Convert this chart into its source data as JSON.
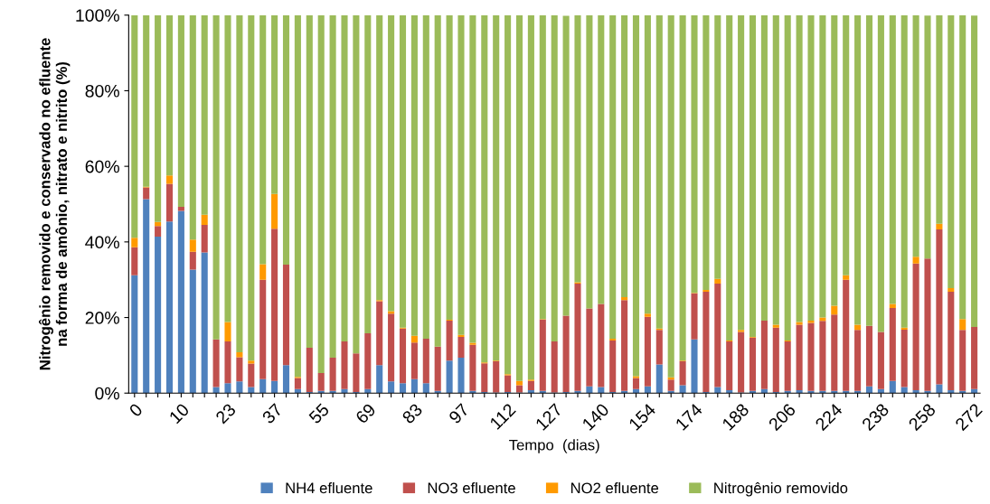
{
  "chart_data": {
    "type": "bar",
    "stacked": true,
    "xlabel": "Tempo  (dias)",
    "ylabel": "Nitrogênio removido e conservado no efluente\nna forma de amônio, nitrato e nitrito (%)",
    "categories": [
      "0",
      null,
      null,
      null,
      "10",
      null,
      null,
      null,
      "23",
      null,
      null,
      null,
      "37",
      null,
      null,
      null,
      "55",
      null,
      null,
      null,
      "69",
      null,
      null,
      null,
      "83",
      null,
      null,
      null,
      "97",
      null,
      null,
      null,
      "112",
      null,
      null,
      null,
      "127",
      null,
      null,
      null,
      "140",
      null,
      null,
      null,
      "154",
      null,
      null,
      null,
      "174",
      null,
      null,
      null,
      "188",
      null,
      null,
      null,
      "206",
      null,
      null,
      null,
      "224",
      null,
      null,
      null,
      "238",
      null,
      null,
      null,
      "258",
      null,
      null,
      null,
      "272"
    ],
    "ylim": [
      0,
      100
    ],
    "yticks": [
      {
        "value": 0,
        "label": "0%"
      },
      {
        "value": 20,
        "label": "20%"
      },
      {
        "value": 40,
        "label": "40%"
      },
      {
        "value": 60,
        "label": "60%"
      },
      {
        "value": 80,
        "label": "80%"
      },
      {
        "value": 100,
        "label": "100%"
      }
    ],
    "legend": "bottom",
    "grid": false,
    "series": [
      {
        "name": "NH4 efluente",
        "color": "#4f81bd",
        "values": [
          31.2,
          51.3,
          41.4,
          45.4,
          48.2,
          32.7,
          37.2,
          1.6,
          2.6,
          3.1,
          1.6,
          3.7,
          3.2,
          7.4,
          1.1,
          0.3,
          0.6,
          0.6,
          1.1,
          0.3,
          1.1,
          7.4,
          3.1,
          2.6,
          3.7,
          2.6,
          0.6,
          8.6,
          9.4,
          0.6,
          0.3,
          0.2,
          0.3,
          0.2,
          0.8,
          0.6,
          0.2,
          0.3,
          0.6,
          1.8,
          1.6,
          0.3,
          0.6,
          1.1,
          1.8,
          7.6,
          0.6,
          2.1,
          14.2,
          0.3,
          1.6,
          0.8,
          0.2,
          0.6,
          1.1,
          0.3,
          0.6,
          0.8,
          0.6,
          0.6,
          0.6,
          0.6,
          0.6,
          1.8,
          1.1,
          3.2,
          1.6,
          0.8,
          0.6,
          2.3,
          0.8,
          0.6,
          1.1
        ]
      },
      {
        "name": "NO3 efluente",
        "color": "#c0504d",
        "values": [
          7.4,
          3.1,
          2.8,
          10.0,
          1.1,
          4.7,
          7.3,
          12.6,
          11.1,
          6.4,
          6.2,
          26.3,
          40.3,
          26.6,
          2.9,
          11.7,
          4.7,
          8.8,
          12.6,
          10.2,
          14.7,
          16.9,
          17.9,
          14.5,
          9.7,
          11.8,
          11.7,
          10.6,
          5.5,
          12.2,
          7.6,
          8.2,
          4.4,
          1.9,
          2.4,
          18.9,
          13.5,
          20.2,
          28.4,
          20.6,
          22.0,
          13.6,
          24.0,
          2.9,
          18.4,
          9.1,
          3.0,
          6.3,
          12.2,
          26.5,
          27.4,
          12.9,
          16.0,
          14.1,
          18.1,
          17.0,
          13.1,
          17.3,
          18.0,
          18.5,
          20.2,
          29.4,
          16.1,
          16.0,
          15.1,
          19.3,
          15.2,
          33.5,
          35.0,
          41.0,
          26.0,
          16.1,
          16.4
        ]
      },
      {
        "name": "NO2 efluente",
        "color": "#ff9a00",
        "values": [
          2.5,
          0.2,
          1.1,
          2.2,
          0.0,
          3.2,
          2.7,
          0.0,
          5.1,
          1.3,
          0.8,
          4.1,
          9.2,
          0.0,
          0.3,
          0.0,
          0.0,
          0.0,
          0.0,
          0.0,
          0.0,
          0.3,
          0.7,
          0.2,
          1.8,
          0.0,
          0.0,
          0.2,
          0.5,
          0.5,
          0.2,
          0.2,
          0.3,
          1.1,
          0.4,
          0.1,
          0.0,
          null,
          0.3,
          0.0,
          0.0,
          0.5,
          0.8,
          0.5,
          0.8,
          0.4,
          0.6,
          0.2,
          0.1,
          0.5,
          1.2,
          0.2,
          0.5,
          0.2,
          0.0,
          0.8,
          0.2,
          0.7,
          0.6,
          0.9,
          2.3,
          1.2,
          1.4,
          0.0,
          0.0,
          1.1,
          0.5,
          1.8,
          null,
          1.5,
          1.0,
          2.9,
          null
        ]
      },
      {
        "name": "Nitrogênio removido",
        "color": "#9bbb59",
        "values": [
          58.9,
          45.4,
          54.7,
          42.4,
          50.7,
          59.4,
          52.8,
          85.8,
          81.2,
          89.2,
          91.4,
          65.9,
          47.3,
          66.0,
          95.7,
          88.0,
          94.7,
          90.6,
          86.3,
          89.5,
          84.2,
          75.4,
          78.3,
          82.7,
          84.8,
          85.6,
          87.7,
          80.6,
          84.6,
          86.7,
          91.9,
          91.4,
          95.0,
          96.8,
          96.4,
          80.4,
          86.3,
          79.3,
          70.7,
          77.6,
          76.4,
          85.6,
          74.6,
          95.5,
          79.0,
          82.9,
          95.8,
          91.4,
          73.5,
          72.7,
          69.8,
          86.1,
          83.3,
          85.1,
          80.8,
          81.9,
          86.1,
          81.2,
          80.8,
          80.0,
          76.9,
          68.8,
          81.9,
          82.2,
          83.8,
          76.4,
          82.7,
          63.9,
          64.3,
          55.2,
          72.2,
          80.4,
          82.4
        ]
      }
    ]
  }
}
